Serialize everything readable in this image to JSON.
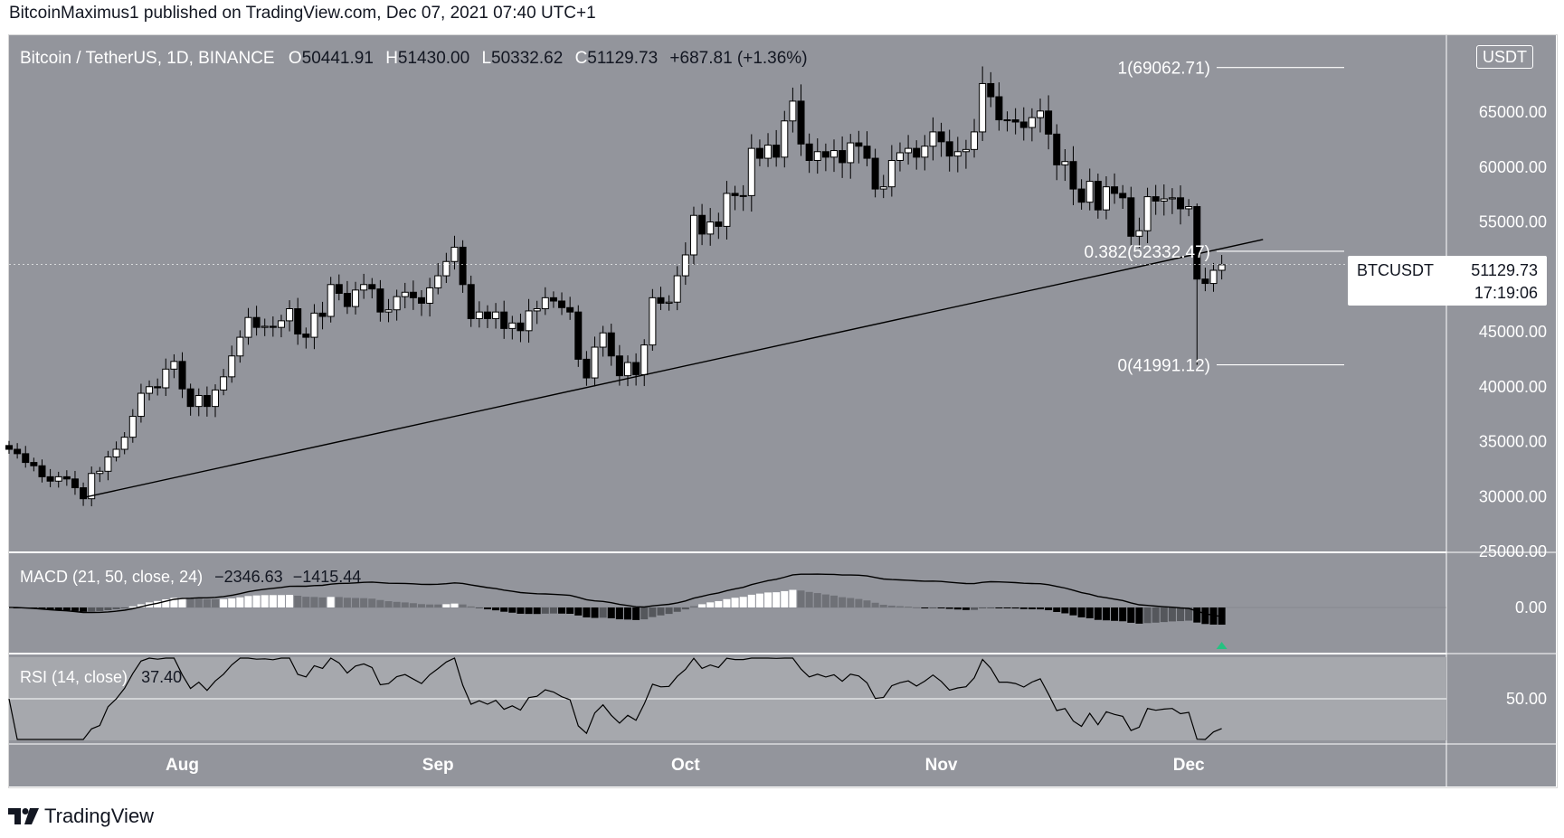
{
  "header": {
    "published_text": "BitcoinMaximus1 published on TradingView.com, Dec 07, 2021 07:40 UTC+1"
  },
  "footer": {
    "brand": "TradingView"
  },
  "legend": {
    "symbol_text": "Bitcoin / TetherUS, 1D, BINANCE",
    "o_label": "O",
    "o_value": "50441.91",
    "h_label": "H",
    "h_value": "51430.00",
    "l_label": "L",
    "l_value": "50332.62",
    "c_label": "C",
    "c_value": "51129.73",
    "change": "+687.81 (+1.36%)"
  },
  "currency_badge": "USDT",
  "price_tag": {
    "symbol": "BTCUSDT",
    "price": "51129.73",
    "countdown": "17:19:06"
  },
  "macd": {
    "label": "MACD (21, 50, close, 24)",
    "v1": "−2346.63",
    "v2": "−1415.44",
    "axis_label": "0.00"
  },
  "rsi": {
    "label": "RSI (14, close)",
    "value": "37.40",
    "axis_label": "50.00"
  },
  "colors": {
    "pane_bg": "#93959c",
    "axis_bg": "#93959c",
    "bull_body": "#ffffff",
    "bear_body": "#000000",
    "wick": "#000000",
    "rsi_band": "#a6a8ad",
    "arrow": "#26c281"
  },
  "chart_data": {
    "type": "candlestick",
    "symbol": "BTCUSDT",
    "interval": "1D",
    "ylim": [
      25000,
      72000
    ],
    "y_ticks": [
      "65000.00",
      "60000.00",
      "55000.00",
      "50000.00",
      "45000.00",
      "40000.00",
      "35000.00",
      "30000.00",
      "25000.00"
    ],
    "y_tick_values": [
      65000,
      60000,
      55000,
      50000,
      45000,
      40000,
      35000,
      30000,
      25000
    ],
    "x_ticks": [
      "Aug",
      "Sep",
      "Oct",
      "Nov",
      "Dec"
    ],
    "x_tick_dates": [
      "2021-08-01",
      "2021-09-01",
      "2021-10-01",
      "2021-11-01",
      "2021-12-01"
    ],
    "dates": {
      "start": "2021-07-11",
      "end": "2021-12-07"
    },
    "closes": [
      34300,
      33900,
      33100,
      32800,
      31800,
      31400,
      31800,
      31600,
      30800,
      29800,
      32100,
      32300,
      33600,
      34300,
      35400,
      37300,
      39400,
      40000,
      39900,
      41600,
      42300,
      39800,
      38200,
      39200,
      38200,
      39700,
      40900,
      42800,
      44500,
      46300,
      45400,
      45500,
      45400,
      46000,
      47100,
      44800,
      44500,
      46700,
      46400,
      49300,
      48500,
      47300,
      48800,
      49300,
      48900,
      46800,
      47000,
      48200,
      48600,
      48100,
      47600,
      49000,
      50100,
      51400,
      52700,
      49300,
      46200,
      46800,
      46200,
      46800,
      45300,
      45800,
      45100,
      46900,
      47100,
      48100,
      47800,
      47200,
      46800,
      42500,
      40800,
      43600,
      44900,
      42800,
      41000,
      42200,
      41100,
      43800,
      48100,
      47600,
      47700,
      50100,
      52000,
      55600,
      53900,
      55000,
      54600,
      57600,
      57400,
      57400,
      61700,
      60800,
      62000,
      60900,
      64200,
      66000,
      62100,
      60600,
      61400,
      60900,
      61500,
      60400,
      62200,
      61900,
      60800,
      58000,
      58200,
      60600,
      61300,
      61700,
      60900,
      61900,
      63200,
      62300,
      61000,
      61400,
      61600,
      63200,
      67600,
      66400,
      64300,
      64300,
      64100,
      63600,
      64500,
      65100,
      63000,
      60200,
      60500,
      58000,
      56800,
      58700,
      56100,
      58200,
      57600,
      57200,
      53700,
      54200,
      57300,
      56900,
      57100,
      57200,
      56200,
      56400,
      49800,
      49400,
      50600,
      51100
    ]
  }
}
